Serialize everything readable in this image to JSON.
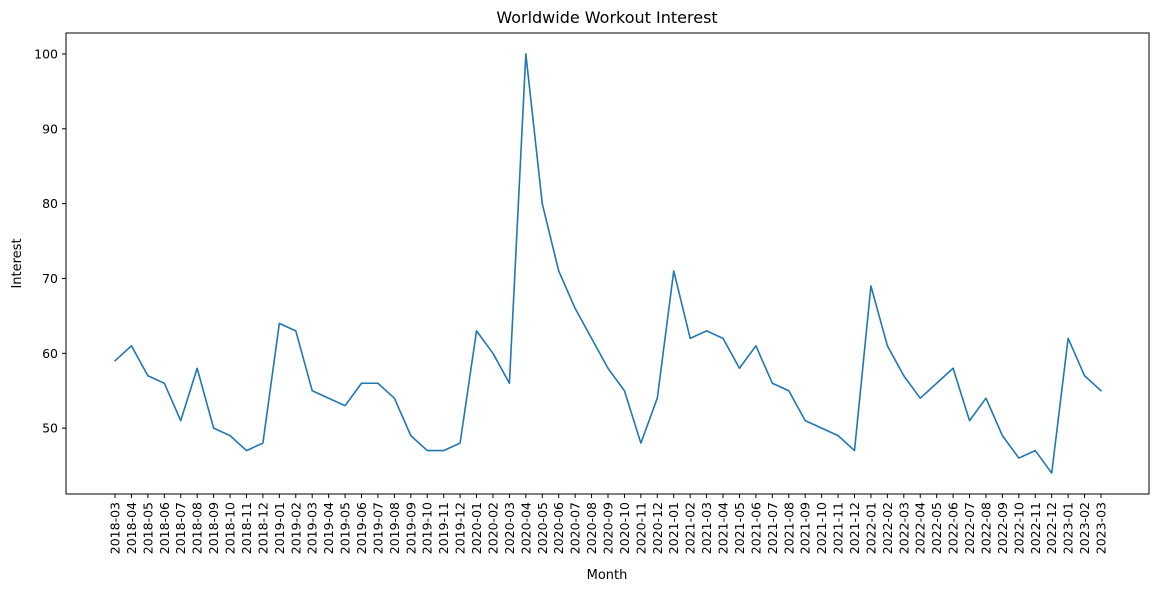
{
  "chart_data": {
    "type": "line",
    "title": "Worldwide Workout Interest",
    "xlabel": "Month",
    "ylabel": "Interest",
    "ylim": [
      41.2,
      102.8
    ],
    "yticks": [
      50,
      60,
      70,
      80,
      90,
      100
    ],
    "grid": false,
    "legend": "none",
    "color": "#1f77b4",
    "x": [
      "2018-03",
      "2018-04",
      "2018-05",
      "2018-06",
      "2018-07",
      "2018-08",
      "2018-09",
      "2018-10",
      "2018-11",
      "2018-12",
      "2019-01",
      "2019-02",
      "2019-03",
      "2019-04",
      "2019-05",
      "2019-06",
      "2019-07",
      "2019-08",
      "2019-09",
      "2019-10",
      "2019-11",
      "2019-12",
      "2020-01",
      "2020-02",
      "2020-03",
      "2020-04",
      "2020-05",
      "2020-06",
      "2020-07",
      "2020-08",
      "2020-09",
      "2020-10",
      "2020-11",
      "2020-12",
      "2021-01",
      "2021-02",
      "2021-03",
      "2021-04",
      "2021-05",
      "2021-06",
      "2021-07",
      "2021-08",
      "2021-09",
      "2021-10",
      "2021-11",
      "2021-12",
      "2022-01",
      "2022-02",
      "2022-03",
      "2022-04",
      "2022-05",
      "2022-06",
      "2022-07",
      "2022-08",
      "2022-09",
      "2022-10",
      "2022-11",
      "2022-12",
      "2023-01",
      "2023-02",
      "2023-03"
    ],
    "series": [
      {
        "values": [
          59,
          61,
          57,
          56,
          51,
          58,
          50,
          49,
          47,
          48,
          64,
          63,
          55,
          54,
          53,
          56,
          56,
          54,
          49,
          47,
          47,
          48,
          63,
          60,
          56,
          100,
          80,
          71,
          66,
          62,
          58,
          55,
          48,
          54,
          71,
          62,
          63,
          62,
          58,
          61,
          56,
          55,
          51,
          50,
          49,
          47,
          69,
          61,
          57,
          54,
          56,
          58,
          51,
          54,
          49,
          46,
          47,
          44,
          62,
          57,
          55
        ]
      }
    ]
  }
}
